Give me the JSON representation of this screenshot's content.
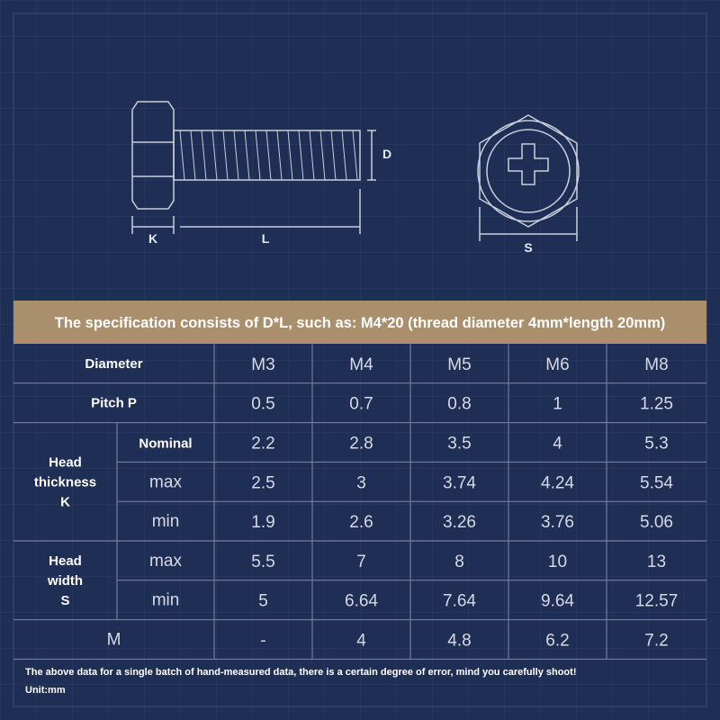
{
  "diagram": {
    "labels": {
      "k": "K",
      "l": "L",
      "d": "D",
      "s": "S"
    }
  },
  "banner": "The specification consists of D*L, such as: M4*20 (thread diameter 4mm*length 20mm)",
  "table": {
    "header": {
      "label": "Diameter",
      "values": [
        "M3",
        "M4",
        "M5",
        "M6",
        "M8"
      ]
    },
    "pitch": {
      "label": "Pitch P",
      "values": [
        "0.5",
        "0.7",
        "0.8",
        "1",
        "1.25"
      ]
    },
    "groups": [
      {
        "lines": [
          "Head",
          "thickness",
          "K"
        ],
        "rows": [
          {
            "label": "Nominal",
            "values": [
              "2.2",
              "2.8",
              "3.5",
              "4",
              "5.3"
            ]
          },
          {
            "label": "max",
            "values": [
              "2.5",
              "3",
              "3.74",
              "4.24",
              "5.54"
            ]
          },
          {
            "label": "min",
            "values": [
              "1.9",
              "2.6",
              "3.26",
              "3.76",
              "5.06"
            ]
          }
        ]
      },
      {
        "lines": [
          "Head",
          "width",
          "S"
        ],
        "rows": [
          {
            "label": "max",
            "values": [
              "5.5",
              "7",
              "8",
              "10",
              "13"
            ]
          },
          {
            "label": "min",
            "values": [
              "5",
              "6.64",
              "7.64",
              "9.64",
              "12.57"
            ]
          }
        ]
      }
    ],
    "m": {
      "label": "M",
      "values": [
        "-",
        "4",
        "4.8",
        "6.2",
        "7.2"
      ]
    }
  },
  "footer": {
    "note": "The above data for a single batch of hand-measured data, there is a certain degree of error, mind you carefully shoot!",
    "unit": "Unit:mm"
  }
}
